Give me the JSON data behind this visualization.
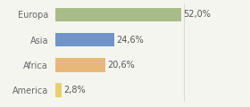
{
  "categories": [
    "America",
    "Africa",
    "Asia",
    "Europa"
  ],
  "values": [
    2.8,
    20.6,
    24.6,
    52.0
  ],
  "labels": [
    "2,8%",
    "20,6%",
    "24,6%",
    "52,0%"
  ],
  "bar_colors": [
    "#e8d070",
    "#e8b87a",
    "#7094c8",
    "#a8bc8a"
  ],
  "background_color": "#f5f5f0",
  "xlim": [
    0,
    68
  ],
  "bar_height": 0.55,
  "label_fontsize": 7.0,
  "tick_fontsize": 7.0,
  "figsize": [
    2.8,
    1.2
  ],
  "dpi": 100
}
